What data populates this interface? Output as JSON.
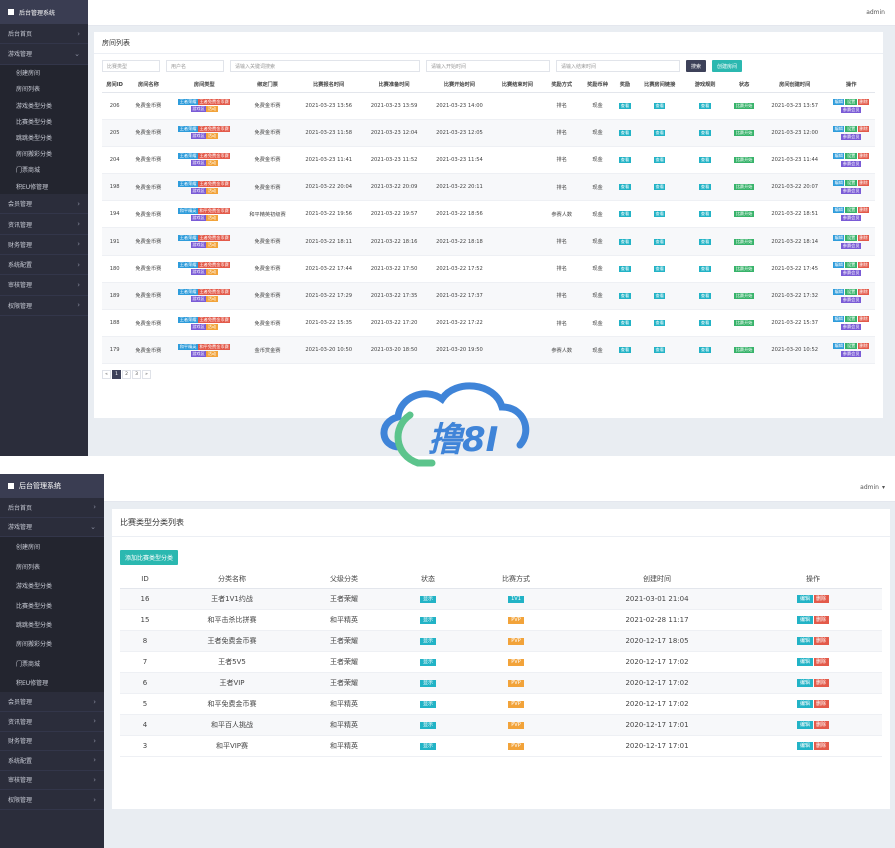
{
  "colors": {
    "sidebar": "#2b2d3b",
    "accent": "#2bb8b0",
    "dark_button": "#3d4159",
    "tag_blue": "#2e9cdb",
    "tag_red": "#e35a4a",
    "tag_green": "#37b36a",
    "tag_orange": "#f2a33a",
    "tag_purple": "#7a5bd6"
  },
  "screen1": {
    "app_title": "后台管理系统",
    "user": "admin",
    "menu": [
      {
        "label": "后台首页",
        "chev": "›"
      },
      {
        "label": "游戏管理",
        "chev": "⌄"
      }
    ],
    "submenu": [
      "创建房间",
      "房间列表",
      "游戏类型分类",
      "比赛类型分类",
      "跳跳类型分类",
      "房间搬彩分类",
      "门票商城",
      "积EU修管理"
    ],
    "menu_after": [
      {
        "label": "会员管理",
        "chev": "›"
      },
      {
        "label": "资讯管理",
        "chev": "›"
      },
      {
        "label": "财务管理",
        "chev": "›"
      },
      {
        "label": "系统配置",
        "chev": "›"
      },
      {
        "label": "审核管理",
        "chev": "›"
      },
      {
        "label": "权限管理",
        "chev": "›"
      }
    ],
    "panel_title": "房间列表",
    "filters": {
      "match_type": "比赛类型",
      "username": "用户名",
      "keyword": "请输入关键词搜索",
      "start_time": "请输入开始时间",
      "end_time": "请输入结束时间",
      "search_btn": "搜索",
      "create_btn": "创建房间"
    },
    "columns": [
      "房间ID",
      "房间名称",
      "房间类型",
      "绑定门票",
      "比赛报名时间",
      "比赛准备时间",
      "比赛开始时间",
      "比赛结束时间",
      "奖励方式",
      "奖励币种",
      "奖励",
      "比赛房间链接",
      "游戏规则",
      "状态",
      "房间创建时间",
      "操作"
    ],
    "rows": [
      {
        "id": "206",
        "name": "免费金币赛",
        "types": [
          [
            "王者荣耀",
            "t-blue"
          ],
          [
            "王者免费金币赛",
            "t-red"
          ],
          [
            "游戏区",
            "t-purple"
          ],
          [
            "活动",
            "t-orange"
          ]
        ],
        "ticket": "免费金币赛",
        "signup": "2021-03-23 13:56",
        "prep": "2021-03-23 13:59",
        "start": "2021-03-23 14:00",
        "end": "",
        "reward_mode": "排名",
        "currency": "现金",
        "reward": "查看",
        "link": "查看",
        "rule": "查看",
        "status": "比赛开始",
        "created": "2021-03-23 13:57"
      },
      {
        "id": "205",
        "name": "免费金币赛",
        "types": [
          [
            "王者荣耀",
            "t-blue"
          ],
          [
            "王者免费金币赛",
            "t-red"
          ],
          [
            "游戏区",
            "t-purple"
          ],
          [
            "活动",
            "t-orange"
          ]
        ],
        "ticket": "免费金币赛",
        "signup": "2021-03-23 11:58",
        "prep": "2021-03-23 12:04",
        "start": "2021-03-23 12:05",
        "end": "",
        "reward_mode": "排名",
        "currency": "现金",
        "reward": "查看",
        "link": "查看",
        "rule": "查看",
        "status": "比赛开始",
        "created": "2021-03-23 12:00"
      },
      {
        "id": "204",
        "name": "免费金币赛",
        "types": [
          [
            "王者荣耀",
            "t-blue"
          ],
          [
            "王者免费金币赛",
            "t-red"
          ],
          [
            "游戏区",
            "t-purple"
          ],
          [
            "活动",
            "t-orange"
          ]
        ],
        "ticket": "免费金币赛",
        "signup": "2021-03-23 11:41",
        "prep": "2021-03-23 11:52",
        "start": "2021-03-23 11:54",
        "end": "",
        "reward_mode": "排名",
        "currency": "现金",
        "reward": "查看",
        "link": "查看",
        "rule": "查看",
        "status": "比赛开始",
        "created": "2021-03-23 11:44"
      },
      {
        "id": "198",
        "name": "免费金币赛",
        "types": [
          [
            "王者荣耀",
            "t-blue"
          ],
          [
            "王者免费金币赛",
            "t-red"
          ],
          [
            "游戏区",
            "t-purple"
          ],
          [
            "活动",
            "t-orange"
          ]
        ],
        "ticket": "免费金币赛",
        "signup": "2021-03-22 20:04",
        "prep": "2021-03-22 20:09",
        "start": "2021-03-22 20:11",
        "end": "",
        "reward_mode": "排名",
        "currency": "现金",
        "reward": "查看",
        "link": "查看",
        "rule": "查看",
        "status": "比赛开始",
        "created": "2021-03-22 20:07"
      },
      {
        "id": "194",
        "name": "免费金币赛",
        "types": [
          [
            "和平精英",
            "t-blue"
          ],
          [
            "和平免费金币赛",
            "t-red"
          ],
          [
            "游戏区",
            "t-purple"
          ],
          [
            "活动",
            "t-orange"
          ]
        ],
        "ticket": "和平精英初级赛",
        "signup": "2021-03-22 19:56",
        "prep": "2021-03-22 19:57",
        "start": "2021-03-22 18:56",
        "end": "",
        "reward_mode": "参赛人数",
        "currency": "现金",
        "reward": "查看",
        "link": "查看",
        "rule": "查看",
        "status": "比赛开始",
        "created": "2021-03-22 18:51"
      },
      {
        "id": "191",
        "name": "免费金币赛",
        "types": [
          [
            "王者荣耀",
            "t-blue"
          ],
          [
            "王者免费金币赛",
            "t-red"
          ],
          [
            "游戏区",
            "t-purple"
          ],
          [
            "活动",
            "t-orange"
          ]
        ],
        "ticket": "免费金币赛",
        "signup": "2021-03-22 18:11",
        "prep": "2021-03-22 18:16",
        "start": "2021-03-22 18:18",
        "end": "",
        "reward_mode": "排名",
        "currency": "现金",
        "reward": "查看",
        "link": "查看",
        "rule": "查看",
        "status": "比赛开始",
        "created": "2021-03-22 18:14"
      },
      {
        "id": "180",
        "name": "免费金币赛",
        "types": [
          [
            "王者荣耀",
            "t-blue"
          ],
          [
            "王者免费金币赛",
            "t-red"
          ],
          [
            "游戏区",
            "t-purple"
          ],
          [
            "活动",
            "t-orange"
          ]
        ],
        "ticket": "免费金币赛",
        "signup": "2021-03-22 17:44",
        "prep": "2021-03-22 17:50",
        "start": "2021-03-22 17:52",
        "end": "",
        "reward_mode": "排名",
        "currency": "现金",
        "reward": "查看",
        "link": "查看",
        "rule": "查看",
        "status": "比赛开始",
        "created": "2021-03-22 17:45"
      },
      {
        "id": "189",
        "name": "免费金币赛",
        "types": [
          [
            "王者荣耀",
            "t-blue"
          ],
          [
            "王者免费金币赛",
            "t-red"
          ],
          [
            "游戏区",
            "t-purple"
          ],
          [
            "活动",
            "t-orange"
          ]
        ],
        "ticket": "免费金币赛",
        "signup": "2021-03-22 17:29",
        "prep": "2021-03-22 17:35",
        "start": "2021-03-22 17:37",
        "end": "",
        "reward_mode": "排名",
        "currency": "现金",
        "reward": "查看",
        "link": "查看",
        "rule": "查看",
        "status": "比赛开始",
        "created": "2021-03-22 17:32"
      },
      {
        "id": "188",
        "name": "免费金币赛",
        "types": [
          [
            "王者荣耀",
            "t-blue"
          ],
          [
            "王者免费金币赛",
            "t-red"
          ],
          [
            "游戏区",
            "t-purple"
          ],
          [
            "活动",
            "t-orange"
          ]
        ],
        "ticket": "免费金币赛",
        "signup": "2021-03-22 15:35",
        "prep": "2021-03-22 17:20",
        "start": "2021-03-22 17:22",
        "end": "",
        "reward_mode": "排名",
        "currency": "现金",
        "reward": "查看",
        "link": "查看",
        "rule": "查看",
        "status": "比赛开始",
        "created": "2021-03-22 15:37"
      },
      {
        "id": "179",
        "name": "免费金币赛",
        "types": [
          [
            "和平精英",
            "t-blue"
          ],
          [
            "和平免费金币赛",
            "t-red"
          ],
          [
            "游戏区",
            "t-purple"
          ],
          [
            "活动",
            "t-orange"
          ]
        ],
        "ticket": "金币赏金赛",
        "signup": "2021-03-20 10:50",
        "prep": "2021-03-20 18:50",
        "start": "2021-03-20 19:50",
        "end": "",
        "reward_mode": "参赛人数",
        "currency": "现金",
        "reward": "查看",
        "link": "查看",
        "rule": "查看",
        "status": "比赛开始",
        "created": "2021-03-20 10:52"
      }
    ],
    "ops": [
      [
        "编辑",
        "t-blue"
      ],
      [
        "设置",
        "t-green"
      ],
      [
        "删除",
        "t-red"
      ],
      [
        "参赛会员",
        "t-purple"
      ]
    ],
    "pager": [
      "«",
      "1",
      "2",
      "3",
      "»"
    ],
    "pager_active": "1"
  },
  "watermark": {
    "text": "撸8I"
  },
  "screen2": {
    "app_title": "后台管理系统",
    "user": "admin",
    "menu": [
      {
        "label": "后台首页",
        "chev": "›"
      },
      {
        "label": "游戏管理",
        "chev": "⌄"
      }
    ],
    "submenu": [
      "创建房间",
      "房间列表",
      "游戏类型分类",
      "比赛类型分类",
      "跳跳类型分类",
      "房间搬彩分类",
      "门票商城",
      "积EU修管理"
    ],
    "menu_after": [
      {
        "label": "会员管理",
        "chev": "›"
      },
      {
        "label": "资讯管理",
        "chev": "›"
      },
      {
        "label": "财务管理",
        "chev": "›"
      },
      {
        "label": "系统配置",
        "chev": "›"
      },
      {
        "label": "审核管理",
        "chev": "›"
      },
      {
        "label": "权限管理",
        "chev": "›"
      }
    ],
    "panel_title": "比赛类型分类列表",
    "add_btn": "添加比赛类型分类",
    "columns": [
      "ID",
      "分类名称",
      "父级分类",
      "状态",
      "比赛方式",
      "创建时间",
      "操作"
    ],
    "rows": [
      {
        "id": "16",
        "name": "王者1V1约战",
        "parent": "王者荣耀",
        "status": "显示",
        "mode": "1V1",
        "mode_color": "#22b3c6",
        "created": "2021-03-01 21:04"
      },
      {
        "id": "15",
        "name": "和平击杀比拼赛",
        "parent": "和平精英",
        "status": "显示",
        "mode": "PVP",
        "mode_color": "#f2a33a",
        "created": "2021-02-28 11:17"
      },
      {
        "id": "8",
        "name": "王者免费金币赛",
        "parent": "王者荣耀",
        "status": "显示",
        "mode": "PVP",
        "mode_color": "#f2a33a",
        "created": "2020-12-17 18:05"
      },
      {
        "id": "7",
        "name": "王者5V5",
        "parent": "王者荣耀",
        "status": "显示",
        "mode": "PVP",
        "mode_color": "#f2a33a",
        "created": "2020-12-17 17:02"
      },
      {
        "id": "6",
        "name": "王者VIP",
        "parent": "王者荣耀",
        "status": "显示",
        "mode": "PVP",
        "mode_color": "#f2a33a",
        "created": "2020-12-17 17:02"
      },
      {
        "id": "5",
        "name": "和平免费金币赛",
        "parent": "和平精英",
        "status": "显示",
        "mode": "PVP",
        "mode_color": "#f2a33a",
        "created": "2020-12-17 17:02"
      },
      {
        "id": "4",
        "name": "和平百人挑战",
        "parent": "和平精英",
        "status": "显示",
        "mode": "PVP",
        "mode_color": "#f2a33a",
        "created": "2020-12-17 17:01"
      },
      {
        "id": "3",
        "name": "和平VIP赛",
        "parent": "和平精英",
        "status": "显示",
        "mode": "PVP",
        "mode_color": "#f2a33a",
        "created": "2020-12-17 17:01"
      }
    ],
    "edit_label": "编辑",
    "delete_label": "删除"
  }
}
